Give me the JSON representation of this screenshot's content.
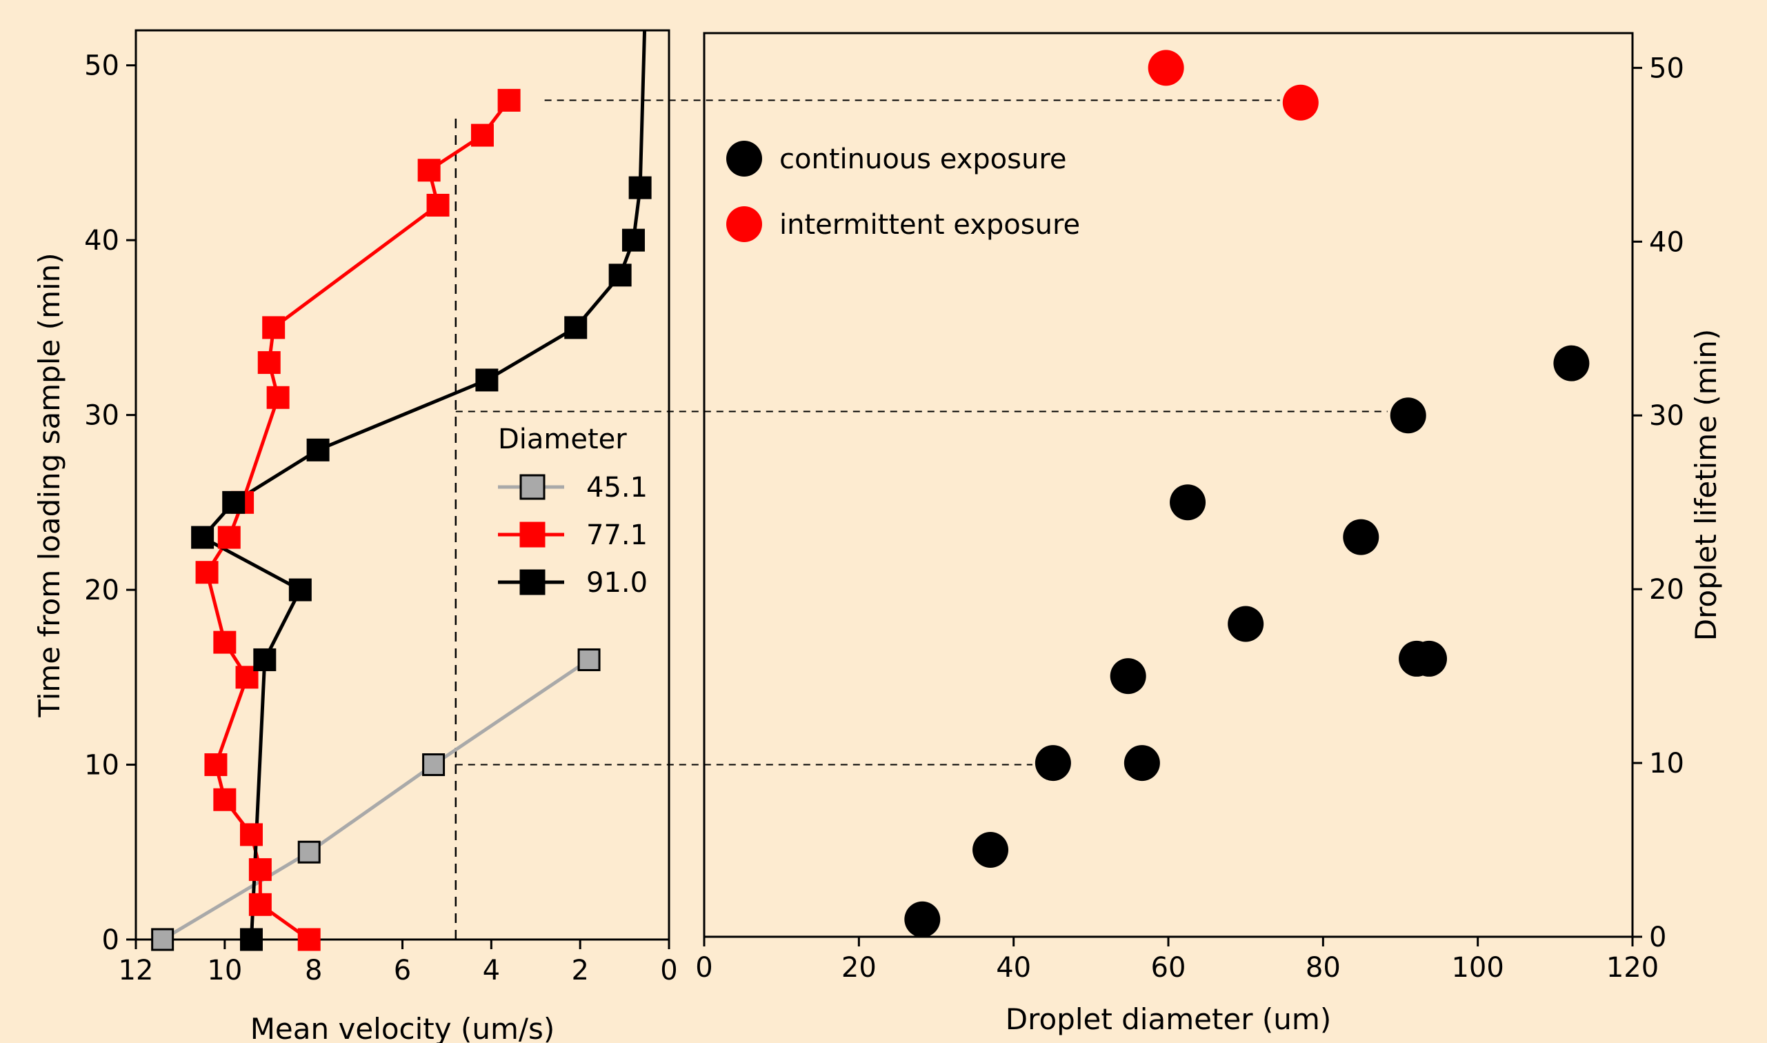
{
  "chart_data": [
    {
      "type": "line",
      "xlabel": "Mean velocity (um/s)",
      "ylabel": "Time from loading sample (min)",
      "xlim": [
        12,
        0
      ],
      "ylim": [
        0,
        52
      ],
      "x_inverted": true,
      "xticks": [
        "12",
        "10",
        "8",
        "6",
        "4",
        "2",
        "0"
      ],
      "yticks": [
        "0",
        "10",
        "20",
        "30",
        "40",
        "50"
      ],
      "legend": {
        "title": "Diameter",
        "placement": "center-right"
      },
      "series": [
        {
          "name": "45.1",
          "color": "#a9a9a9",
          "marker_face": "#a9a9a9",
          "marker_edge": "#000000",
          "points": [
            [
              11.4,
              0
            ],
            [
              8.1,
              5
            ],
            [
              5.3,
              10
            ],
            [
              1.8,
              16
            ]
          ]
        },
        {
          "name": "77.1",
          "color": "#ff0000",
          "marker_face": "#ff0000",
          "marker_edge": "#ff0000",
          "points": [
            [
              8.1,
              0
            ],
            [
              9.2,
              2
            ],
            [
              9.2,
              4
            ],
            [
              9.4,
              6
            ],
            [
              10.0,
              8
            ],
            [
              10.2,
              10
            ],
            [
              9.5,
              15
            ],
            [
              10.0,
              17
            ],
            [
              10.4,
              21
            ],
            [
              9.9,
              23
            ],
            [
              9.6,
              25
            ],
            [
              8.8,
              31
            ],
            [
              9.0,
              33
            ],
            [
              8.9,
              35
            ],
            [
              5.2,
              42
            ],
            [
              5.4,
              44
            ],
            [
              4.2,
              46
            ],
            [
              3.6,
              48
            ]
          ]
        },
        {
          "name": "91.0",
          "color": "#000000",
          "marker_face": "#000000",
          "marker_edge": "#000000",
          "points": [
            [
              9.4,
              0
            ],
            [
              9.1,
              16
            ],
            [
              8.3,
              20
            ],
            [
              10.5,
              23
            ],
            [
              9.8,
              25
            ],
            [
              7.9,
              28
            ],
            [
              4.1,
              32
            ],
            [
              2.1,
              35
            ],
            [
              1.1,
              38
            ],
            [
              0.8,
              40
            ],
            [
              0.65,
              43
            ],
            [
              0.55,
              52
            ]
          ]
        }
      ]
    },
    {
      "type": "scatter",
      "xlabel": "Droplet diameter (um)",
      "ylabel": "Droplet lifetime (min)",
      "xlim": [
        0,
        120
      ],
      "ylim": [
        0,
        52
      ],
      "xticks": [
        "0",
        "20",
        "40",
        "60",
        "80",
        "100",
        "120"
      ],
      "yticks": [
        "0",
        "10",
        "20",
        "30",
        "40",
        "50"
      ],
      "legend": {
        "placement": "top-left"
      },
      "series": [
        {
          "name": "continuous exposure",
          "color": "#000000",
          "points": [
            [
              28.2,
              1
            ],
            [
              37.0,
              5
            ],
            [
              45.1,
              10
            ],
            [
              56.6,
              10
            ],
            [
              54.8,
              15
            ],
            [
              70.0,
              18
            ],
            [
              92.1,
              16
            ],
            [
              93.7,
              16
            ],
            [
              62.5,
              25
            ],
            [
              84.9,
              23
            ],
            [
              91.0,
              30
            ],
            [
              112.1,
              33
            ]
          ]
        },
        {
          "name": "intermittent exposure",
          "color": "#ff0000",
          "points": [
            [
              59.7,
              50
            ],
            [
              77.1,
              48
            ]
          ]
        }
      ]
    }
  ],
  "connectors": [
    {
      "y": 10,
      "from_velocity": 4.8,
      "to_diameter": 45.1
    },
    {
      "y": 30.2,
      "from_velocity": 4.8,
      "to_diameter": 91.0
    },
    {
      "y": 48,
      "from_velocity": 2.8,
      "to_diameter": 77.1
    }
  ],
  "threshold_velocity": 4.8
}
